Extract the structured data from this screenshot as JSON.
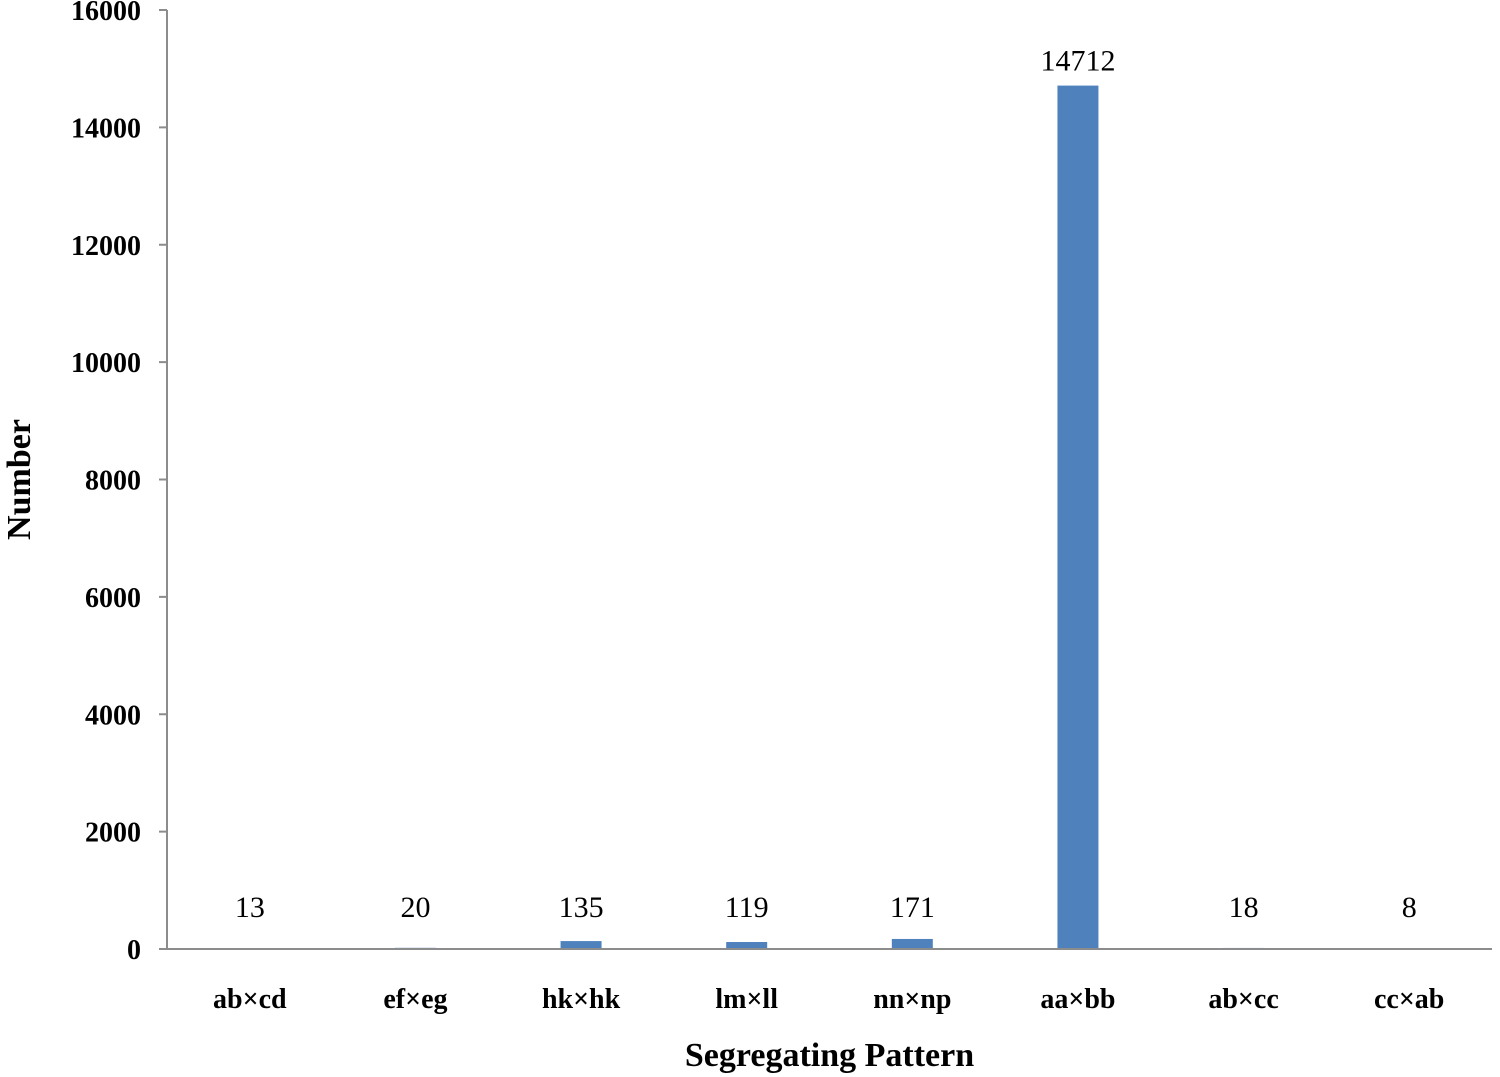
{
  "chart_data": {
    "type": "bar",
    "title": "",
    "xlabel": "Segregating Pattern",
    "ylabel": "Number",
    "categories": [
      "ab×cd",
      "ef×eg",
      "hk×hk",
      "lm×ll",
      "nn×np",
      "aa×bb",
      "ab×cc",
      "cc×ab"
    ],
    "values": [
      13,
      20,
      135,
      119,
      171,
      14712,
      18,
      8
    ],
    "value_labels": [
      "13",
      "20",
      "135",
      "119",
      "171",
      "14712",
      "18",
      "8"
    ],
    "ylim": [
      0,
      16000
    ],
    "yticks": [
      0,
      2000,
      4000,
      6000,
      8000,
      10000,
      12000,
      14000,
      16000
    ],
    "ytick_labels": [
      "0",
      "2000",
      "4000",
      "6000",
      "8000",
      "10000",
      "12000",
      "14000",
      "16000"
    ],
    "bar_color": "#4F81BD",
    "axis_color": "#8c8c8c",
    "grid": false,
    "legend": "none"
  }
}
